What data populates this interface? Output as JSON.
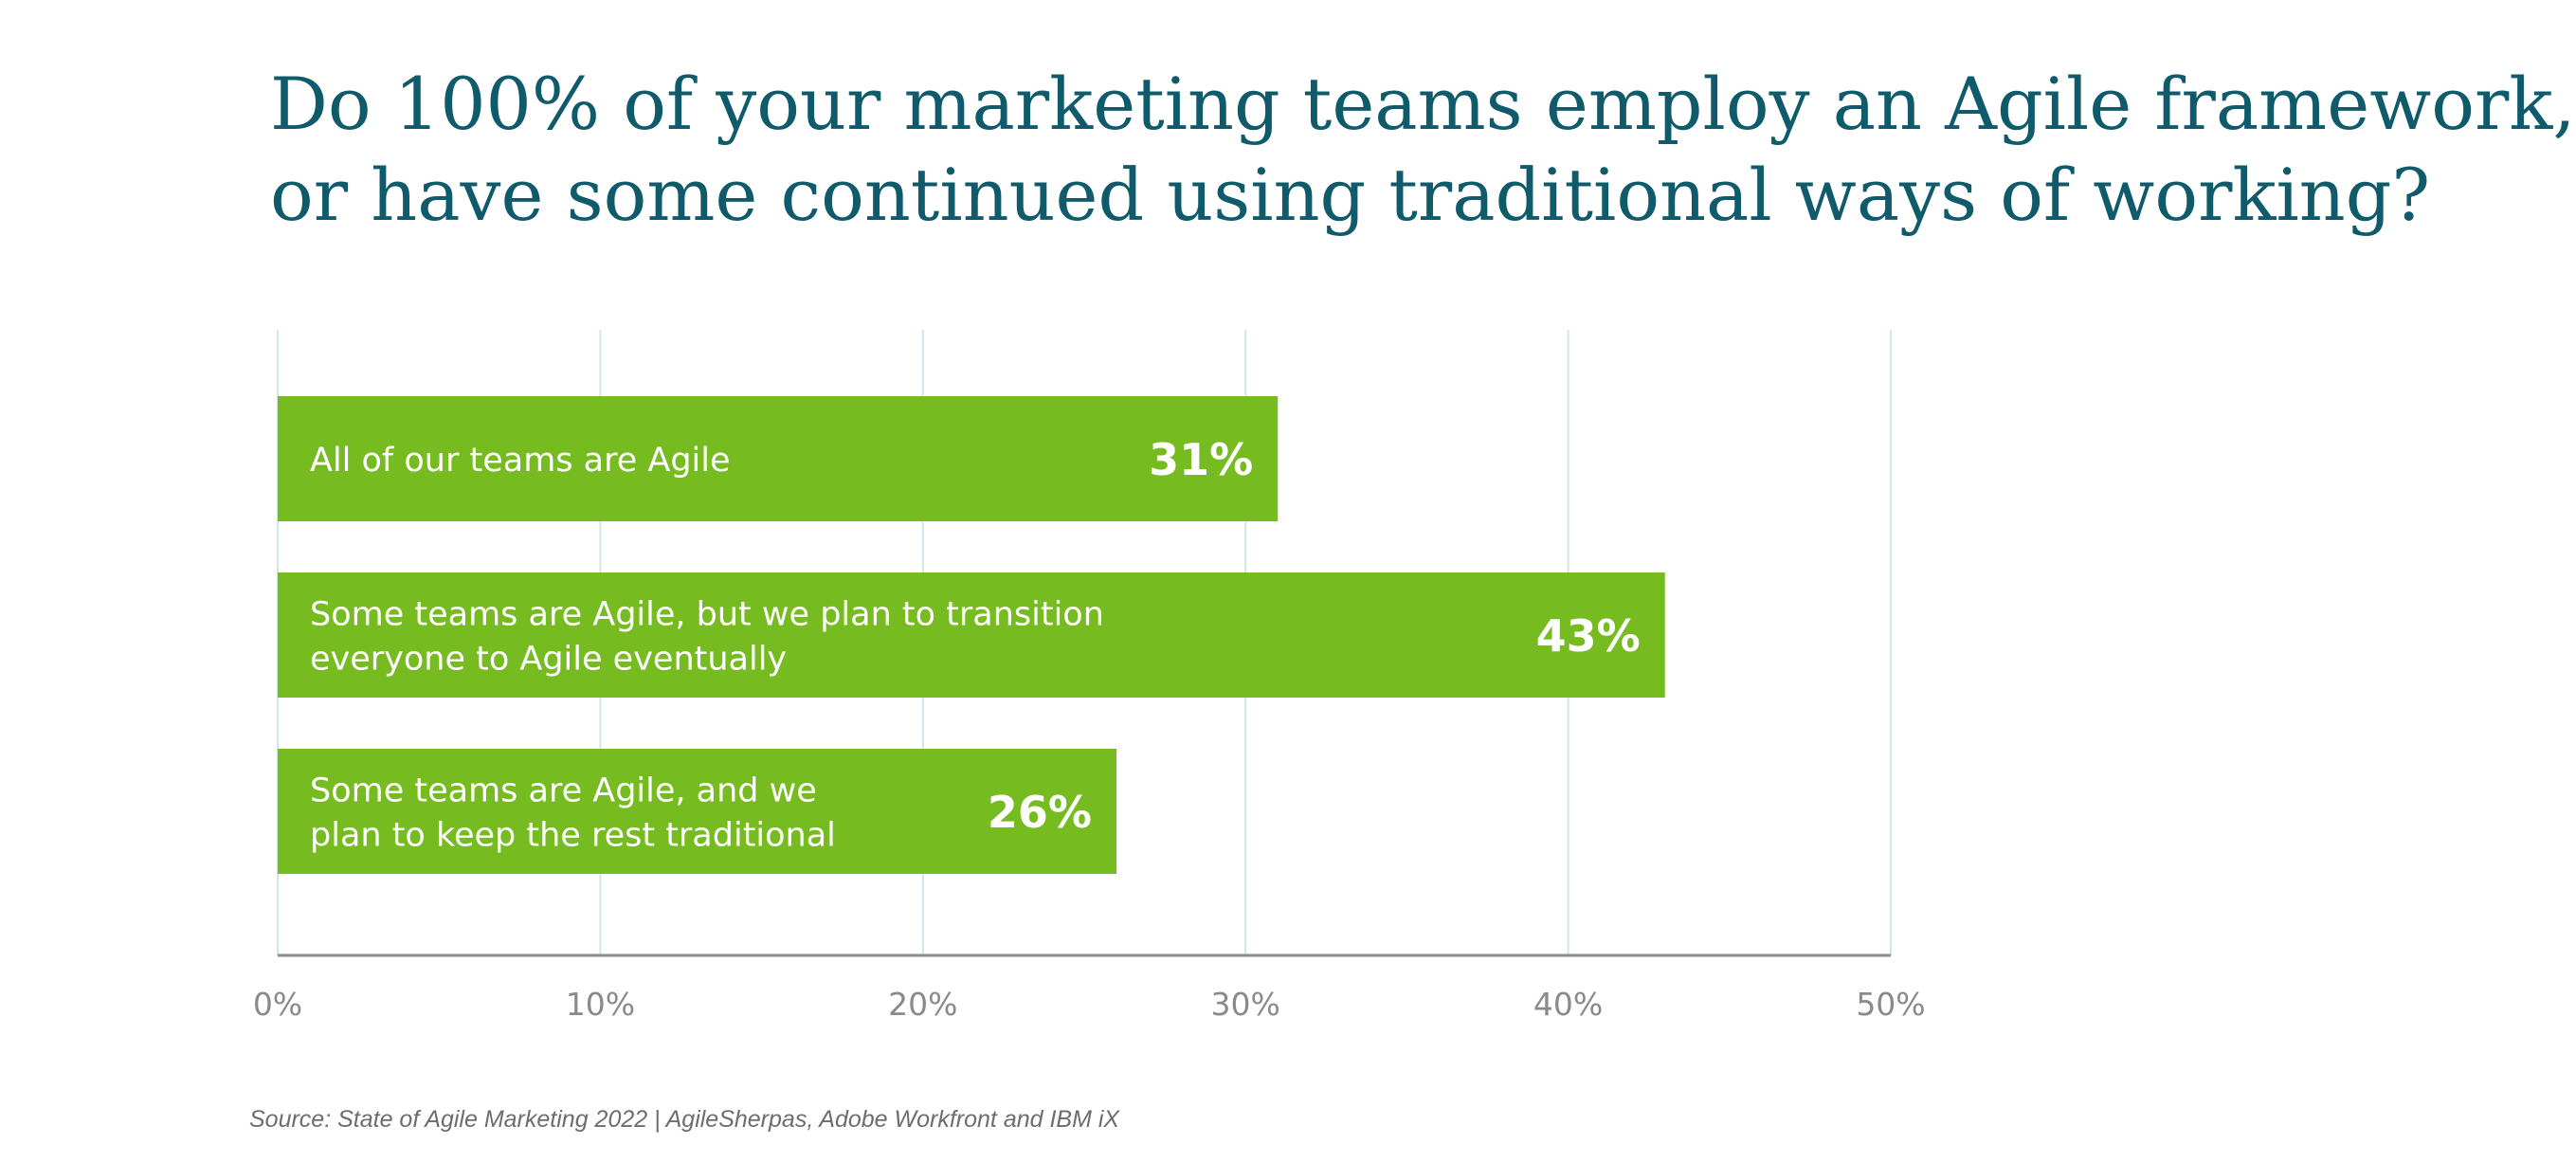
{
  "title": {
    "line1": "Do 100% of your marketing teams employ an Agile framework,",
    "line2": "or have some continued using traditional ways of working?"
  },
  "chart_data": {
    "type": "bar",
    "orientation": "horizontal",
    "categories": [
      [
        "All of our teams are Agile"
      ],
      [
        "Some teams are Agile, but we plan to transition",
        "everyone to Agile eventually"
      ],
      [
        "Some teams are Agile, and we",
        "plan to keep the rest traditional"
      ]
    ],
    "values": [
      31,
      43,
      26
    ],
    "value_labels": [
      "31%",
      "43%",
      "26%"
    ],
    "xlim": [
      0,
      50
    ],
    "xticks": [
      0,
      10,
      20,
      30,
      40,
      50
    ],
    "xtick_labels": [
      "0%",
      "10%",
      "20%",
      "30%",
      "40%",
      "50%"
    ],
    "grid": true,
    "colors": {
      "bar": "#76bc21",
      "grid": "#cfe8e6",
      "axis": "#8a8a8a",
      "tick": "#8a8a8a",
      "bar_text": "#ffffff"
    }
  },
  "source": "Source: State of Agile Marketing 2022 | AgileSherpas, Adobe Workfront and IBM iX"
}
